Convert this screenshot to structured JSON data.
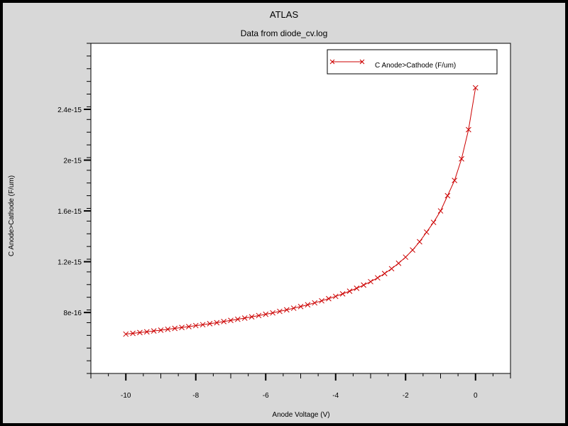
{
  "chart_data": {
    "type": "line",
    "title": "ATLAS",
    "subtitle": "Data from diode_cv.log",
    "xlabel": "Anode Voltage (V)",
    "ylabel": "C Anode>Cathode (F/um)",
    "xlim": [
      -11,
      1
    ],
    "ylim": [
      3.2e-16,
      2.92e-15
    ],
    "x_ticks": [
      -10,
      -8,
      -6,
      -4,
      -2,
      0
    ],
    "x_tick_labels": [
      "-10",
      "-8",
      "-6",
      "-4",
      "-2",
      "0"
    ],
    "y_ticks": [
      8e-16,
      1.2e-15,
      1.6e-15,
      2e-15,
      2.4e-15
    ],
    "y_tick_labels": [
      "8e-16",
      "1.2e-15",
      "1.6e-15",
      "2e-15",
      "2.4e-15"
    ],
    "grid": false,
    "legend_position": "top-right",
    "series": [
      {
        "name": "C Anode>Cathode (F/um)",
        "color": "#cc0000",
        "marker": "x",
        "x": [
          -10.0,
          -9.8,
          -9.6,
          -9.4,
          -9.2,
          -9.0,
          -8.8,
          -8.6,
          -8.4,
          -8.2,
          -8.0,
          -7.8,
          -7.6,
          -7.4,
          -7.2,
          -7.0,
          -6.8,
          -6.6,
          -6.4,
          -6.2,
          -6.0,
          -5.8,
          -5.6,
          -5.4,
          -5.2,
          -5.0,
          -4.8,
          -4.6,
          -4.4,
          -4.2,
          -4.0,
          -3.8,
          -3.6,
          -3.4,
          -3.2,
          -3.0,
          -2.8,
          -2.6,
          -2.4,
          -2.2,
          -2.0,
          -1.8,
          -1.6,
          -1.4,
          -1.2,
          -1.0,
          -0.8,
          -0.6,
          -0.4,
          -0.2,
          0.0
        ],
        "y": [
          6.3e-16,
          6.36e-16,
          6.42e-16,
          6.48e-16,
          6.55e-16,
          6.61e-16,
          6.68e-16,
          6.75e-16,
          6.82e-16,
          6.89e-16,
          6.97e-16,
          7.04e-16,
          7.12e-16,
          7.2e-16,
          7.29e-16,
          7.38e-16,
          7.47e-16,
          7.56e-16,
          7.66e-16,
          7.76e-16,
          7.86e-16,
          7.97e-16,
          8.09e-16,
          8.21e-16,
          8.34e-16,
          8.47e-16,
          8.61e-16,
          8.76e-16,
          8.92e-16,
          9.09e-16,
          9.27e-16,
          9.47e-16,
          9.68e-16,
          9.91e-16,
          1.016e-15,
          1.043e-15,
          1.073e-15,
          1.107e-15,
          1.145e-15,
          1.188e-15,
          1.236e-15,
          1.292e-15,
          1.357e-15,
          1.433e-15,
          1.51e-15,
          1.6e-15,
          1.72e-15,
          1.84e-15,
          2.01e-15,
          2.24e-15,
          2.57e-15
        ]
      }
    ]
  }
}
